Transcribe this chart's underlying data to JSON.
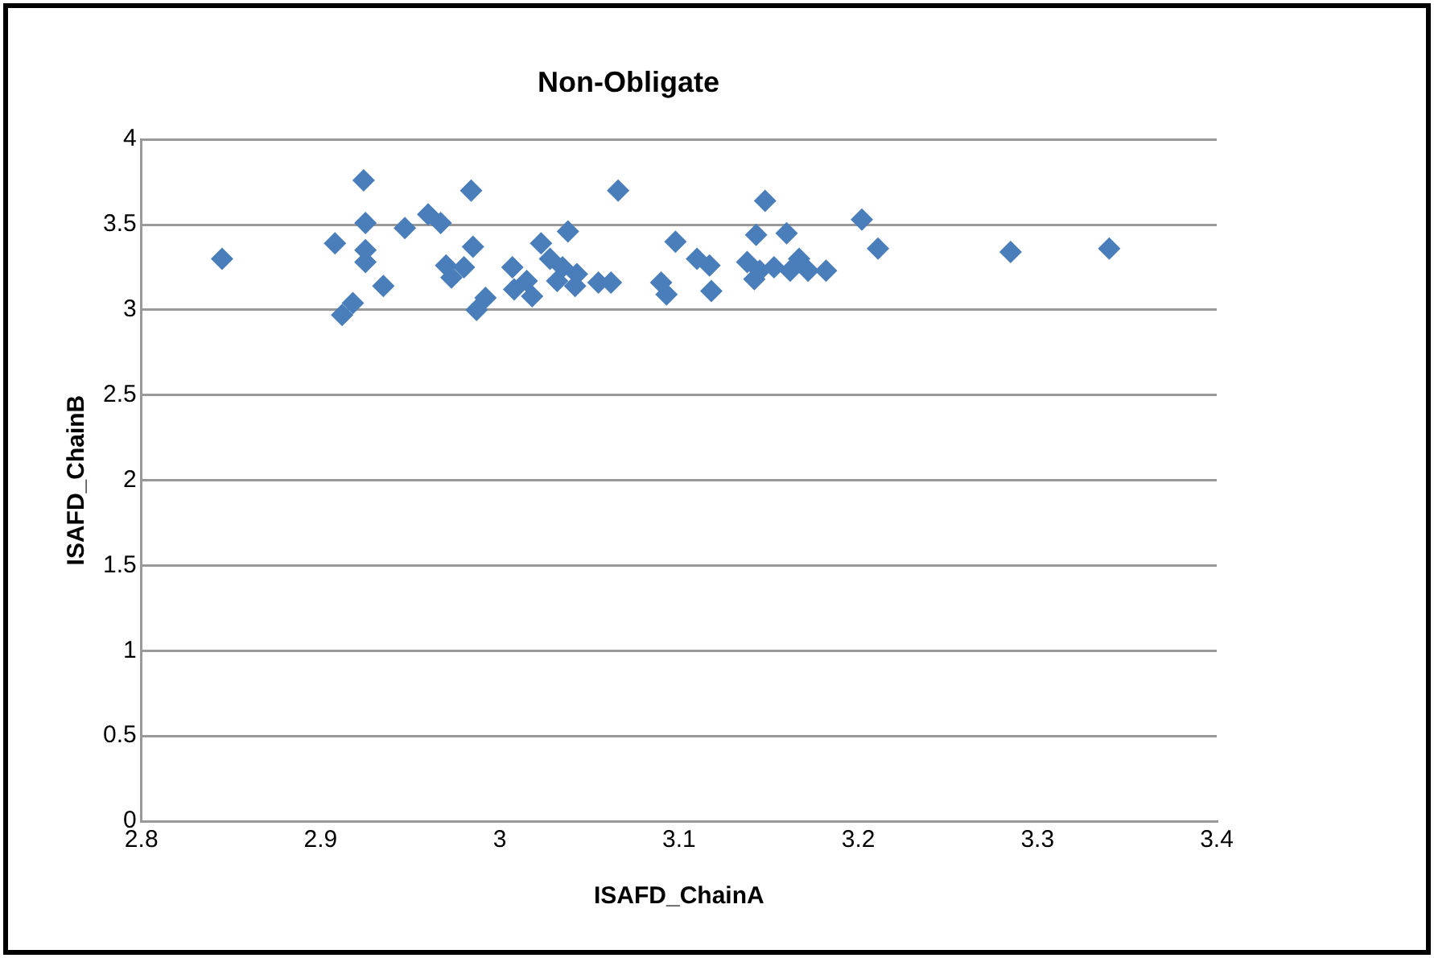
{
  "chart_data": {
    "type": "scatter",
    "title": "Non-Obligate",
    "xlabel": "ISAFD_ChainA",
    "ylabel": "ISAFD_ChainB",
    "x": [
      2.845,
      2.924,
      2.908,
      2.925,
      2.925,
      2.925,
      2.935,
      2.912,
      2.918,
      2.947,
      2.96,
      2.967,
      2.984,
      2.985,
      2.97,
      2.973,
      2.98,
      2.987,
      2.992,
      3.007,
      3.008,
      3.015,
      3.018,
      3.023,
      3.028,
      3.032,
      3.035,
      3.038,
      3.042,
      3.043,
      3.052,
      3.055,
      3.062,
      3.066,
      3.09,
      3.093,
      3.098,
      3.11,
      3.117,
      3.118,
      3.148,
      3.143,
      3.16,
      3.138,
      3.142,
      3.145,
      3.153,
      3.162,
      3.172,
      3.182,
      3.167,
      3.202,
      3.211,
      3.285,
      3.34
    ],
    "values": [
      3.3,
      3.76,
      3.39,
      3.51,
      3.35,
      3.28,
      3.14,
      2.97,
      3.04,
      3.48,
      3.56,
      3.51,
      3.7,
      3.37,
      3.26,
      3.19,
      3.25,
      3.0,
      3.07,
      3.25,
      3.12,
      3.17,
      3.08,
      3.39,
      3.3,
      3.17,
      3.25,
      3.46,
      3.14,
      3.21,
      null,
      3.16,
      3.16,
      3.7,
      3.16,
      3.09,
      3.4,
      3.3,
      3.26,
      3.11,
      3.64,
      3.44,
      3.45,
      3.28,
      3.18,
      3.23,
      3.25,
      3.23,
      3.23,
      3.23,
      3.3,
      3.53,
      3.36,
      3.34,
      3.36
    ],
    "color": "#4a7ebb",
    "marker": "diamond",
    "grid": "y",
    "xlim": [
      2.8,
      3.4
    ],
    "xticks": [
      2.8,
      2.9,
      3,
      3.1,
      3.2,
      3.3,
      3.4
    ],
    "ylim": [
      0,
      4
    ],
    "yticks": [
      0,
      0.5,
      1,
      1.5,
      2,
      2.5,
      3,
      3.5,
      4
    ]
  }
}
